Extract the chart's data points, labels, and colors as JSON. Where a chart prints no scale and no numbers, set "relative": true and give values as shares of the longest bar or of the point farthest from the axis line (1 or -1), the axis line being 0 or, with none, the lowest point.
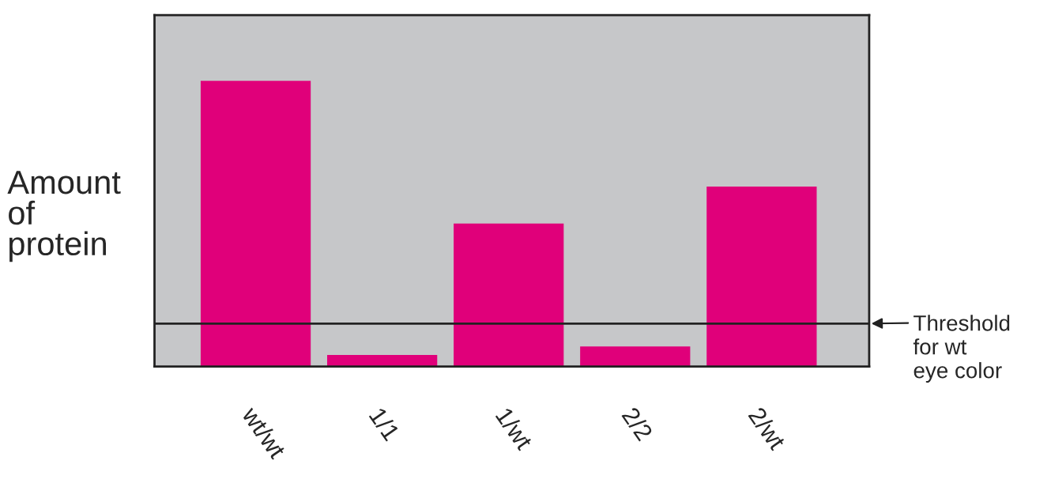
{
  "chart_data": {
    "type": "bar",
    "relative": true,
    "ylabel": "Amount of protein",
    "categories": [
      "wt/wt",
      "1/1",
      "1/wt",
      "2/2",
      "2/wt"
    ],
    "values": [
      1,
      0.04,
      0.5,
      0.07,
      0.63
    ],
    "color": "#e0007a",
    "ref_lines": [
      {
        "axis": "y",
        "value": 0.15,
        "label": "Threshold for wt eye color",
        "color": "#222222"
      }
    ],
    "grid": false
  }
}
